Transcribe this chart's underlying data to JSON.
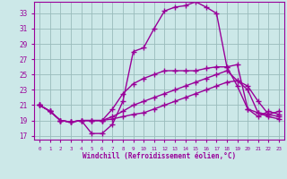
{
  "bg_color": "#cce8e8",
  "line_color": "#990099",
  "grid_color": "#99bbbb",
  "xlabel": "Windchill (Refroidissement éolien,°C)",
  "xlim": [
    -0.5,
    23.5
  ],
  "ylim": [
    16.5,
    34.5
  ],
  "yticks": [
    17,
    19,
    21,
    23,
    25,
    27,
    29,
    31,
    33
  ],
  "xticks": [
    0,
    1,
    2,
    3,
    4,
    5,
    6,
    7,
    8,
    9,
    10,
    11,
    12,
    13,
    14,
    15,
    16,
    17,
    18,
    19,
    20,
    21,
    22,
    23
  ],
  "curve1_x": [
    0,
    1,
    2,
    3,
    4,
    5,
    6,
    7,
    8,
    9,
    10,
    11,
    12,
    13,
    14,
    15,
    16,
    17,
    18,
    19,
    20,
    21,
    22,
    23
  ],
  "curve1_y": [
    21.0,
    20.2,
    19.0,
    18.8,
    19.0,
    17.3,
    17.3,
    18.5,
    21.5,
    28.0,
    28.5,
    31.0,
    33.3,
    33.8,
    34.0,
    34.5,
    33.8,
    33.0,
    26.0,
    23.5,
    20.5,
    19.5,
    20.2,
    19.8
  ],
  "curve2_x": [
    0,
    1,
    2,
    3,
    4,
    5,
    6,
    7,
    8,
    9,
    10,
    11,
    12,
    13,
    14,
    15,
    16,
    17,
    18,
    19,
    20,
    21,
    22,
    23
  ],
  "curve2_y": [
    21.0,
    20.2,
    19.0,
    18.8,
    19.0,
    19.0,
    19.0,
    20.5,
    22.5,
    23.8,
    24.5,
    25.0,
    25.5,
    25.5,
    25.5,
    25.5,
    25.8,
    26.0,
    26.0,
    26.3,
    20.5,
    20.0,
    19.5,
    19.2
  ],
  "curve3_x": [
    0,
    1,
    2,
    3,
    4,
    5,
    6,
    7,
    8,
    9,
    10,
    11,
    12,
    13,
    14,
    15,
    16,
    17,
    18,
    19,
    20,
    21,
    22,
    23
  ],
  "curve3_y": [
    21.0,
    20.2,
    19.0,
    18.8,
    19.0,
    19.0,
    19.0,
    19.5,
    20.2,
    21.0,
    21.5,
    22.0,
    22.5,
    23.0,
    23.5,
    24.0,
    24.5,
    25.0,
    25.5,
    24.2,
    23.5,
    21.5,
    19.8,
    20.2
  ],
  "curve4_x": [
    0,
    1,
    2,
    3,
    4,
    5,
    6,
    7,
    8,
    9,
    10,
    11,
    12,
    13,
    14,
    15,
    16,
    17,
    18,
    19,
    20,
    21,
    22,
    23
  ],
  "curve4_y": [
    21.0,
    20.2,
    19.0,
    18.8,
    19.0,
    19.0,
    19.0,
    19.2,
    19.5,
    19.8,
    20.0,
    20.5,
    21.0,
    21.5,
    22.0,
    22.5,
    23.0,
    23.5,
    24.0,
    24.2,
    23.0,
    20.0,
    19.8,
    19.5
  ]
}
